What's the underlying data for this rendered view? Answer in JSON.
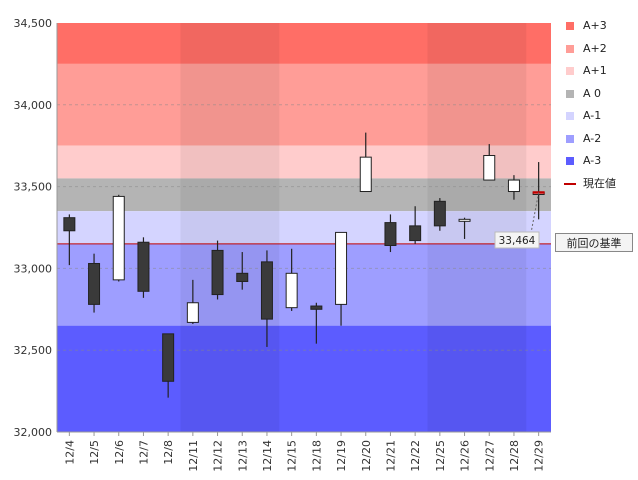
{
  "legend": [
    {
      "label": "A+3",
      "color": "#ff6e66"
    },
    {
      "label": "A+2",
      "color": "#ff9d97"
    },
    {
      "label": "A+1",
      "color": "#ffcccc"
    },
    {
      "label": "A 0",
      "color": "#b4b4b4"
    },
    {
      "label": "A-1",
      "color": "#d4d4ff"
    },
    {
      "label": "A-2",
      "color": "#9e9eff"
    },
    {
      "label": "A-3",
      "color": "#5c5cff"
    },
    {
      "label": "現在値",
      "color": "#c00000"
    }
  ],
  "callout": {
    "label": "前回の基準"
  },
  "chart_data": {
    "type": "candlestick",
    "title": "",
    "xlabel": "",
    "ylabel": "",
    "ylim": [
      32000,
      34500
    ],
    "yticks": [
      32000,
      32500,
      33000,
      33500,
      34000,
      34500
    ],
    "ytick_labels": [
      "32,000",
      "32,500",
      "33,000",
      "33,500",
      "34,000",
      "34,500"
    ],
    "grid": "horizontal-dashed",
    "legend_position": "right",
    "categories": [
      "12/4",
      "12/5",
      "12/6",
      "12/7",
      "12/8",
      "12/11",
      "12/12",
      "12/13",
      "12/14",
      "12/15",
      "12/18",
      "12/19",
      "12/20",
      "12/21",
      "12/22",
      "12/25",
      "12/26",
      "12/27",
      "12/28",
      "12/29"
    ],
    "ohlc": [
      {
        "open": 33310,
        "high": 33330,
        "low": 33020,
        "close": 33230
      },
      {
        "open": 33030,
        "high": 33090,
        "low": 32730,
        "close": 32780
      },
      {
        "open": 32930,
        "high": 33450,
        "low": 32920,
        "close": 33440
      },
      {
        "open": 33160,
        "high": 33190,
        "low": 32820,
        "close": 32860
      },
      {
        "open": 32600,
        "high": 32600,
        "low": 32210,
        "close": 32310
      },
      {
        "open": 32670,
        "high": 32930,
        "low": 32660,
        "close": 32790
      },
      {
        "open": 33110,
        "high": 33170,
        "low": 32810,
        "close": 32840
      },
      {
        "open": 32970,
        "high": 33100,
        "low": 32870,
        "close": 32920
      },
      {
        "open": 33040,
        "high": 33110,
        "low": 32520,
        "close": 32690
      },
      {
        "open": 32760,
        "high": 33120,
        "low": 32740,
        "close": 32970
      },
      {
        "open": 32770,
        "high": 32790,
        "low": 32540,
        "close": 32750
      },
      {
        "open": 32780,
        "high": 33220,
        "low": 32650,
        "close": 33220
      },
      {
        "open": 33470,
        "high": 33830,
        "low": 33470,
        "close": 33680
      },
      {
        "open": 33280,
        "high": 33330,
        "low": 33100,
        "close": 33140
      },
      {
        "open": 33260,
        "high": 33380,
        "low": 33150,
        "close": 33170
      },
      {
        "open": 33410,
        "high": 33430,
        "low": 33230,
        "close": 33260
      },
      {
        "open": 33300,
        "high": 33310,
        "low": 33180,
        "close": 33300
      },
      {
        "open": 33540,
        "high": 33760,
        "low": 33540,
        "close": 33690
      },
      {
        "open": 33470,
        "high": 33570,
        "low": 33420,
        "close": 33540
      },
      {
        "open": 33460,
        "high": 33650,
        "low": 33300,
        "close": 33464
      }
    ],
    "bands": [
      {
        "name": "A+3",
        "from": 34250,
        "to": 34500
      },
      {
        "name": "A+2",
        "from": 33750,
        "to": 34250
      },
      {
        "name": "A+1",
        "from": 33550,
        "to": 33750
      },
      {
        "name": "A 0",
        "from": 33350,
        "to": 33550
      },
      {
        "name": "A-1",
        "from": 33150,
        "to": 33350
      },
      {
        "name": "A-2",
        "from": 32650,
        "to": 33150
      },
      {
        "name": "A-3",
        "from": 32000,
        "to": 32650
      }
    ],
    "shaded_weeks": [
      [
        5,
        9
      ],
      [
        15,
        19
      ]
    ],
    "reference_line": {
      "name": "前回の基準",
      "value": 33150
    },
    "current_value": {
      "label": "33,464",
      "value": 33464
    }
  }
}
